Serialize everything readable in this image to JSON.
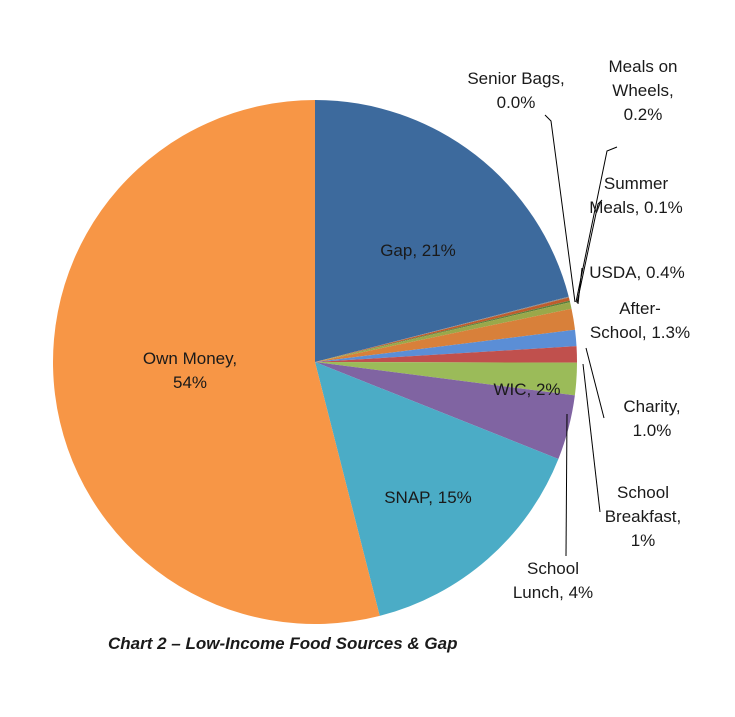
{
  "chart_data": {
    "type": "pie",
    "title": "Chart 2 – Low-Income Food Sources & Gap",
    "slices": [
      {
        "label": "Gap",
        "value": 21,
        "color": "#3d6a9d",
        "display_label": [
          "Gap, 21%"
        ]
      },
      {
        "label": "Senior Bags",
        "value": 0.05,
        "color": "#8a8a8a",
        "display_label": [
          "Senior Bags,",
          "0.0%"
        ]
      },
      {
        "label": "Meals on Wheels",
        "value": 0.2,
        "color": "#bf5c2c",
        "display_label": [
          "Meals on",
          "Wheels,",
          "0.2%"
        ]
      },
      {
        "label": "Summer Meals",
        "value": 0.1,
        "color": "#5c7f3a",
        "display_label": [
          "Summer",
          "Meals, 0.1%"
        ]
      },
      {
        "label": "USDA",
        "value": 0.4,
        "color": "#9aa84a",
        "display_label": [
          "USDA, 0.4%"
        ]
      },
      {
        "label": "After-School",
        "value": 1.3,
        "color": "#d8803a",
        "display_label": [
          "After-",
          "School, 1.3%"
        ]
      },
      {
        "label": "Charity",
        "value": 1.0,
        "color": "#5b8ed6",
        "display_label": [
          "Charity,",
          "1.0%"
        ]
      },
      {
        "label": "School Breakfast",
        "value": 1,
        "color": "#c0504d",
        "display_label": [
          "School",
          "Breakfast,",
          "1%"
        ]
      },
      {
        "label": "WIC",
        "value": 2,
        "color": "#9bbb59",
        "display_label": [
          "WIC, 2%"
        ]
      },
      {
        "label": "School Lunch",
        "value": 4,
        "color": "#8064a2",
        "display_label": [
          "School",
          "Lunch, 4%"
        ]
      },
      {
        "label": "SNAP",
        "value": 15,
        "color": "#4bacc6",
        "display_label": [
          "SNAP, 15%"
        ]
      },
      {
        "label": "Own Money",
        "value": 54,
        "color": "#f79646",
        "display_label": [
          "Own Money,",
          "54%"
        ]
      }
    ],
    "start_angle_deg": 0,
    "direction": "clockwise",
    "legend": "none"
  }
}
